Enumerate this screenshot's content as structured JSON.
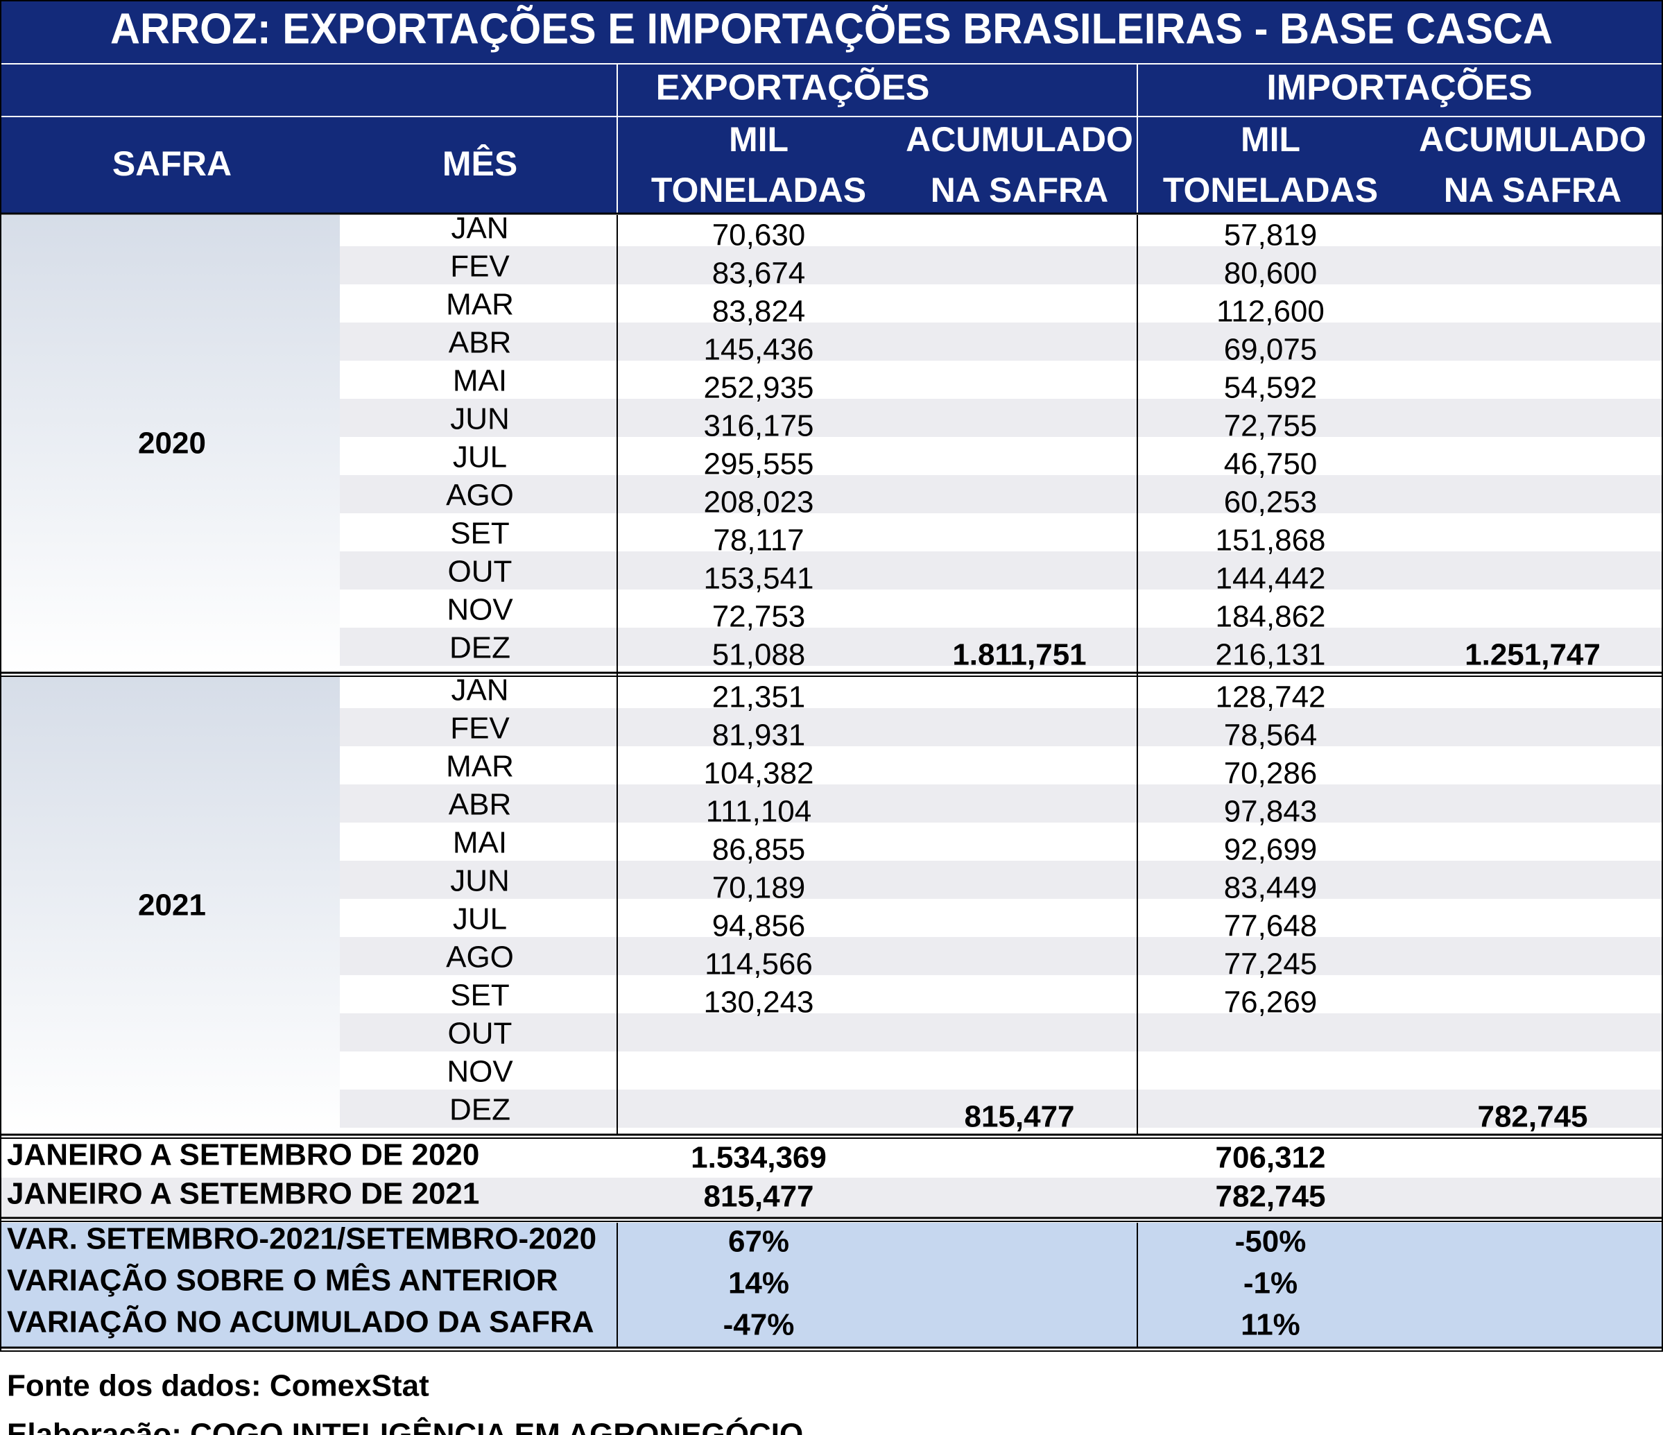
{
  "title": "ARROZ: EXPORTAÇÕES E IMPORTAÇÕES BRASILEIRAS - BASE CASCA",
  "headers": {
    "exportacoes": "EXPORTAÇÕES",
    "importacoes": "IMPORTAÇÕES",
    "safra": "SAFRA",
    "mes": "MÊS",
    "mil_line1": "MIL",
    "mil_line2": "TONELADAS",
    "acum_line1": "ACUMULADO",
    "acum_line2": "NA SAFRA"
  },
  "colors": {
    "header_bg": "#132a7a",
    "row_alt": "#ececf0",
    "safra_gradient_top": "#d6dde8",
    "safra_gradient_bottom": "#ffffff",
    "var_bg": "#c6d7ef",
    "positive": "#1a1aff",
    "negative": "#ff1a1a"
  },
  "chart_data": {
    "type": "table",
    "title": "ARROZ: EXPORTAÇÕES E IMPORTAÇÕES BRASILEIRAS - BASE CASCA",
    "columns": [
      "SAFRA",
      "MÊS",
      "EXPORTAÇÕES MIL TONELADAS",
      "EXPORTAÇÕES ACUMULADO NA SAFRA",
      "IMPORTAÇÕES MIL TONELADAS",
      "IMPORTAÇÕES ACUMULADO NA SAFRA"
    ],
    "safras": [
      {
        "year": "2020",
        "months": [
          {
            "mes": "JAN",
            "exp": "70,630",
            "imp": "57,819"
          },
          {
            "mes": "FEV",
            "exp": "83,674",
            "imp": "80,600"
          },
          {
            "mes": "MAR",
            "exp": "83,824",
            "imp": "112,600"
          },
          {
            "mes": "ABR",
            "exp": "145,436",
            "imp": "69,075"
          },
          {
            "mes": "MAI",
            "exp": "252,935",
            "imp": "54,592"
          },
          {
            "mes": "JUN",
            "exp": "316,175",
            "imp": "72,755"
          },
          {
            "mes": "JUL",
            "exp": "295,555",
            "imp": "46,750"
          },
          {
            "mes": "AGO",
            "exp": "208,023",
            "imp": "60,253"
          },
          {
            "mes": "SET",
            "exp": "78,117",
            "imp": "151,868"
          },
          {
            "mes": "OUT",
            "exp": "153,541",
            "imp": "144,442"
          },
          {
            "mes": "NOV",
            "exp": "72,753",
            "imp": "184,862"
          },
          {
            "mes": "DEZ",
            "exp": "51,088",
            "imp": "216,131"
          }
        ],
        "acum_exp": "1.811,751",
        "acum_imp": "1.251,747"
      },
      {
        "year": "2021",
        "months": [
          {
            "mes": "JAN",
            "exp": "21,351",
            "imp": "128,742"
          },
          {
            "mes": "FEV",
            "exp": "81,931",
            "imp": "78,564"
          },
          {
            "mes": "MAR",
            "exp": "104,382",
            "imp": "70,286"
          },
          {
            "mes": "ABR",
            "exp": "111,104",
            "imp": "97,843"
          },
          {
            "mes": "MAI",
            "exp": "86,855",
            "imp": "92,699"
          },
          {
            "mes": "JUN",
            "exp": "70,189",
            "imp": "83,449"
          },
          {
            "mes": "JUL",
            "exp": "94,856",
            "imp": "77,648"
          },
          {
            "mes": "AGO",
            "exp": "114,566",
            "imp": "77,245"
          },
          {
            "mes": "SET",
            "exp": "130,243",
            "imp": "76,269"
          },
          {
            "mes": "OUT",
            "exp": "",
            "imp": ""
          },
          {
            "mes": "NOV",
            "exp": "",
            "imp": ""
          },
          {
            "mes": "DEZ",
            "exp": "",
            "imp": ""
          }
        ],
        "acum_exp": "815,477",
        "acum_imp": "782,745"
      }
    ],
    "summary": [
      {
        "label": "JANEIRO A SETEMBRO DE 2020",
        "exp": "1.534,369",
        "imp": "706,312"
      },
      {
        "label": "JANEIRO A SETEMBRO DE 2021",
        "exp": "815,477",
        "imp": "782,745"
      }
    ],
    "variations": [
      {
        "label": "VAR. SETEMBRO-2021/SETEMBRO-2020",
        "exp": "67%",
        "exp_sign": "positive",
        "imp": "-50%",
        "imp_sign": "negative"
      },
      {
        "label": "VARIAÇÃO SOBRE O MÊS ANTERIOR",
        "exp": "14%",
        "exp_sign": "positive",
        "imp": "-1%",
        "imp_sign": "negative"
      },
      {
        "label": "VARIAÇÃO NO ACUMULADO DA SAFRA",
        "exp": "-47%",
        "exp_sign": "negative",
        "imp": "11%",
        "imp_sign": "positive"
      }
    ]
  },
  "footer": {
    "fonte": "Fonte dos dados: ComexStat",
    "elaboracao": "Elaboração: COGO INTELIGÊNCIA EM AGRONEGÓCIO"
  }
}
